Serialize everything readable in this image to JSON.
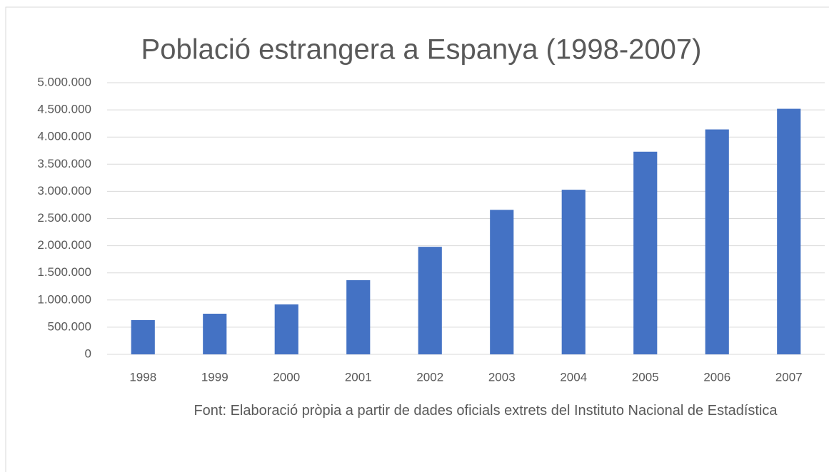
{
  "chart_data": {
    "type": "bar",
    "title": "Població estrangera a Espanya (1998-2007)",
    "categories": [
      "1998",
      "1999",
      "2000",
      "2001",
      "2002",
      "2003",
      "2004",
      "2005",
      "2006",
      "2007"
    ],
    "values": [
      630000,
      748000,
      920000,
      1365000,
      1980000,
      2660000,
      3030000,
      3730000,
      4140000,
      4520000
    ],
    "color": "#4472c4",
    "ylim": [
      0,
      5000000
    ],
    "yticks": [
      0,
      {
        "value": 500000,
        "label": "500.000"
      },
      {
        "value": 1000000,
        "label": "1.000.000"
      },
      {
        "value": 1500000,
        "label": "1.500.000"
      },
      {
        "value": 2000000,
        "label": "2.000.000"
      },
      {
        "value": 2500000,
        "label": "2.500.000"
      },
      {
        "value": 3000000,
        "label": "3.000.000"
      },
      {
        "value": 3500000,
        "label": "3.500.000"
      },
      {
        "value": 4000000,
        "label": "4.000.000"
      },
      {
        "value": 4500000,
        "label": "4.500.000"
      },
      {
        "value": 5000000,
        "label": "5.000.000"
      }
    ],
    "grid": true,
    "source": "Font: Elaboració pròpia a partir de dades oficials extrets del Instituto Nacional de Estadística"
  }
}
